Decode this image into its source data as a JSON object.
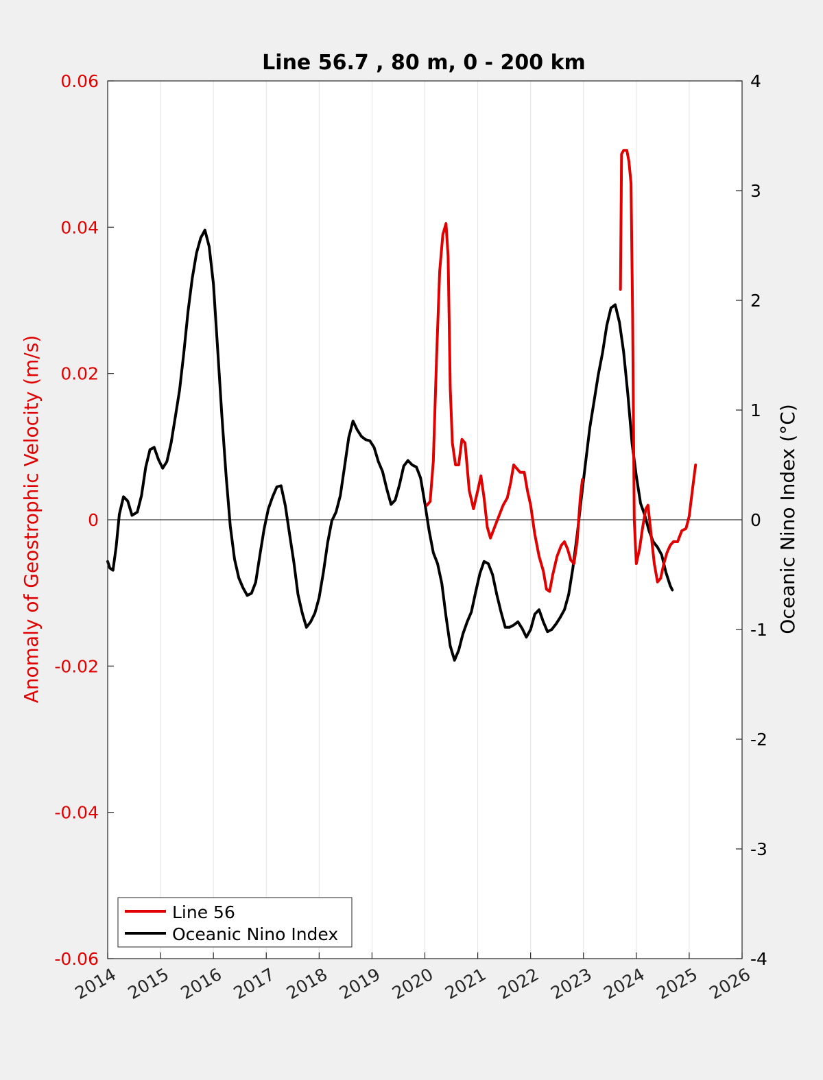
{
  "chart_data": {
    "type": "line",
    "title": "Line 56.7 , 80 m, 0 - 200 km",
    "xlabel": "",
    "ylabel_left": "Anomaly of Geostrophic Velocity (m/s)",
    "ylabel_right": "Oceanic Nino Index (°C)",
    "xlim": [
      2014,
      2026
    ],
    "ylim_left": [
      -0.06,
      0.06
    ],
    "ylim_right": [
      -4,
      4
    ],
    "x_ticks": [
      "2014",
      "2015",
      "2016",
      "2017",
      "2018",
      "2019",
      "2020",
      "2021",
      "2022",
      "2023",
      "2024",
      "2025",
      "2026"
    ],
    "y_ticks_left": [
      "-0.06",
      "-0.04",
      "-0.02",
      "0",
      "0.02",
      "0.04",
      "0.06"
    ],
    "y_ticks_right": [
      "-4",
      "-3",
      "-2",
      "-1",
      "0",
      "1",
      "2",
      "3",
      "4"
    ],
    "grid": "vertical",
    "legend_position": "bottom-left",
    "colors": {
      "left_axis": "#e00000",
      "line56": "#e00000",
      "oni": "#000000",
      "background": "#f0f0f0",
      "plot_area": "#ffffff"
    },
    "series": [
      {
        "name": "Line 56",
        "axis": "left",
        "segments": [
          [
            [
              2020.04,
              0.002
            ],
            [
              2020.1,
              0.0025
            ],
            [
              2020.16,
              0.008
            ],
            [
              2020.22,
              0.022
            ],
            [
              2020.28,
              0.034
            ],
            [
              2020.34,
              0.039
            ],
            [
              2020.4,
              0.0405
            ],
            [
              2020.44,
              0.036
            ],
            [
              2020.48,
              0.018
            ],
            [
              2020.52,
              0.0105
            ],
            [
              2020.58,
              0.0075
            ],
            [
              2020.64,
              0.0075
            ],
            [
              2020.7,
              0.011
            ],
            [
              2020.76,
              0.0105
            ],
            [
              2020.84,
              0.004
            ],
            [
              2020.92,
              0.0015
            ],
            [
              2021.0,
              0.004
            ],
            [
              2021.06,
              0.006
            ],
            [
              2021.12,
              0.003
            ],
            [
              2021.18,
              -0.001
            ],
            [
              2021.24,
              -0.0025
            ],
            [
              2021.32,
              -0.001
            ],
            [
              2021.4,
              0.0005
            ],
            [
              2021.48,
              0.002
            ],
            [
              2021.56,
              0.003
            ],
            [
              2021.62,
              0.005
            ],
            [
              2021.68,
              0.0075
            ],
            [
              2021.74,
              0.007
            ],
            [
              2021.8,
              0.0065
            ],
            [
              2021.88,
              0.0065
            ],
            [
              2021.94,
              0.004
            ],
            [
              2022.0,
              0.002
            ],
            [
              2022.08,
              -0.002
            ],
            [
              2022.16,
              -0.005
            ],
            [
              2022.24,
              -0.007
            ],
            [
              2022.3,
              -0.0095
            ],
            [
              2022.36,
              -0.0098
            ],
            [
              2022.42,
              -0.0075
            ],
            [
              2022.5,
              -0.005
            ],
            [
              2022.58,
              -0.0035
            ],
            [
              2022.64,
              -0.003
            ],
            [
              2022.7,
              -0.004
            ],
            [
              2022.76,
              -0.0055
            ],
            [
              2022.82,
              -0.006
            ],
            [
              2022.88,
              -0.003
            ],
            [
              2022.94,
              0.003
            ],
            [
              2022.98,
              0.0055
            ]
          ],
          [
            [
              2023.7,
              0.0315
            ],
            [
              2023.72,
              0.05
            ],
            [
              2023.76,
              0.0505
            ],
            [
              2023.82,
              0.0505
            ],
            [
              2023.86,
              0.049
            ],
            [
              2023.9,
              0.046
            ],
            [
              2023.93,
              0.028
            ],
            [
              2023.96,
              0.0
            ],
            [
              2024.0,
              -0.006
            ],
            [
              2024.06,
              -0.004
            ],
            [
              2024.12,
              -0.001
            ],
            [
              2024.18,
              0.0015
            ],
            [
              2024.22,
              0.002
            ],
            [
              2024.28,
              -0.002
            ],
            [
              2024.34,
              -0.006
            ],
            [
              2024.4,
              -0.0085
            ],
            [
              2024.46,
              -0.008
            ],
            [
              2024.52,
              -0.006
            ],
            [
              2024.58,
              -0.0045
            ],
            [
              2024.64,
              -0.0035
            ],
            [
              2024.7,
              -0.003
            ],
            [
              2024.78,
              -0.003
            ],
            [
              2024.86,
              -0.0015
            ],
            [
              2024.94,
              -0.0012
            ],
            [
              2025.0,
              0.0005
            ],
            [
              2025.06,
              0.004
            ],
            [
              2025.12,
              0.0075
            ]
          ]
        ]
      },
      {
        "name": "Oceanic Nino Index",
        "axis": "right",
        "segments": [
          [
            [
              2014.0,
              -0.38
            ],
            [
              2014.04,
              -0.44
            ],
            [
              2014.1,
              -0.46
            ],
            [
              2014.16,
              -0.25
            ],
            [
              2014.22,
              0.05
            ],
            [
              2014.3,
              0.21
            ],
            [
              2014.38,
              0.17
            ],
            [
              2014.46,
              0.04
            ],
            [
              2014.56,
              0.07
            ],
            [
              2014.64,
              0.22
            ],
            [
              2014.72,
              0.48
            ],
            [
              2014.8,
              0.64
            ],
            [
              2014.88,
              0.66
            ],
            [
              2014.96,
              0.55
            ],
            [
              2015.04,
              0.47
            ],
            [
              2015.12,
              0.53
            ],
            [
              2015.2,
              0.7
            ],
            [
              2015.28,
              0.94
            ],
            [
              2015.36,
              1.18
            ],
            [
              2015.44,
              1.52
            ],
            [
              2015.52,
              1.9
            ],
            [
              2015.6,
              2.2
            ],
            [
              2015.68,
              2.43
            ],
            [
              2015.76,
              2.57
            ],
            [
              2015.84,
              2.64
            ],
            [
              2015.92,
              2.49
            ],
            [
              2016.0,
              2.15
            ],
            [
              2016.08,
              1.56
            ],
            [
              2016.16,
              0.95
            ],
            [
              2016.24,
              0.4
            ],
            [
              2016.32,
              -0.06
            ],
            [
              2016.4,
              -0.36
            ],
            [
              2016.48,
              -0.53
            ],
            [
              2016.56,
              -0.62
            ],
            [
              2016.64,
              -0.69
            ],
            [
              2016.72,
              -0.67
            ],
            [
              2016.8,
              -0.57
            ],
            [
              2016.88,
              -0.32
            ],
            [
              2016.96,
              -0.08
            ],
            [
              2017.04,
              0.1
            ],
            [
              2017.12,
              0.21
            ],
            [
              2017.2,
              0.3
            ],
            [
              2017.28,
              0.31
            ],
            [
              2017.36,
              0.13
            ],
            [
              2017.44,
              -0.13
            ],
            [
              2017.52,
              -0.38
            ],
            [
              2017.6,
              -0.68
            ],
            [
              2017.68,
              -0.85
            ],
            [
              2017.76,
              -0.98
            ],
            [
              2017.84,
              -0.93
            ],
            [
              2017.92,
              -0.85
            ],
            [
              2018.0,
              -0.71
            ],
            [
              2018.08,
              -0.48
            ],
            [
              2018.16,
              -0.21
            ],
            [
              2018.24,
              -0.01
            ],
            [
              2018.32,
              0.07
            ],
            [
              2018.4,
              0.22
            ],
            [
              2018.48,
              0.48
            ],
            [
              2018.56,
              0.75
            ],
            [
              2018.64,
              0.9
            ],
            [
              2018.72,
              0.82
            ],
            [
              2018.8,
              0.76
            ],
            [
              2018.88,
              0.73
            ],
            [
              2018.96,
              0.72
            ],
            [
              2019.04,
              0.66
            ],
            [
              2019.12,
              0.53
            ],
            [
              2019.2,
              0.44
            ],
            [
              2019.28,
              0.28
            ],
            [
              2019.36,
              0.14
            ],
            [
              2019.44,
              0.18
            ],
            [
              2019.52,
              0.32
            ],
            [
              2019.6,
              0.49
            ],
            [
              2019.68,
              0.54
            ],
            [
              2019.76,
              0.5
            ],
            [
              2019.84,
              0.48
            ],
            [
              2019.92,
              0.38
            ],
            [
              2020.0,
              0.15
            ],
            [
              2020.08,
              -0.1
            ],
            [
              2020.16,
              -0.3
            ],
            [
              2020.24,
              -0.4
            ],
            [
              2020.32,
              -0.58
            ],
            [
              2020.4,
              -0.88
            ],
            [
              2020.48,
              -1.15
            ],
            [
              2020.56,
              -1.28
            ],
            [
              2020.64,
              -1.19
            ],
            [
              2020.72,
              -1.04
            ],
            [
              2020.8,
              -0.93
            ],
            [
              2020.88,
              -0.84
            ],
            [
              2020.96,
              -0.66
            ],
            [
              2021.04,
              -0.49
            ],
            [
              2021.12,
              -0.38
            ],
            [
              2021.2,
              -0.4
            ],
            [
              2021.28,
              -0.5
            ],
            [
              2021.36,
              -0.68
            ],
            [
              2021.44,
              -0.84
            ],
            [
              2021.52,
              -0.98
            ],
            [
              2021.6,
              -0.98
            ],
            [
              2021.68,
              -0.96
            ],
            [
              2021.76,
              -0.93
            ],
            [
              2021.84,
              -0.99
            ],
            [
              2021.92,
              -1.07
            ],
            [
              2022.0,
              -1.0
            ],
            [
              2022.08,
              -0.86
            ],
            [
              2022.16,
              -0.82
            ],
            [
              2022.24,
              -0.93
            ],
            [
              2022.32,
              -1.02
            ],
            [
              2022.4,
              -1.0
            ],
            [
              2022.48,
              -0.95
            ],
            [
              2022.56,
              -0.89
            ],
            [
              2022.64,
              -0.82
            ],
            [
              2022.72,
              -0.68
            ],
            [
              2022.8,
              -0.44
            ],
            [
              2022.88,
              -0.14
            ],
            [
              2022.96,
              0.2
            ],
            [
              2023.04,
              0.52
            ],
            [
              2023.12,
              0.84
            ],
            [
              2023.2,
              1.08
            ],
            [
              2023.28,
              1.32
            ],
            [
              2023.36,
              1.52
            ],
            [
              2023.44,
              1.77
            ],
            [
              2023.52,
              1.93
            ],
            [
              2023.6,
              1.96
            ],
            [
              2023.68,
              1.8
            ],
            [
              2023.76,
              1.53
            ],
            [
              2023.84,
              1.14
            ],
            [
              2023.92,
              0.69
            ],
            [
              2024.0,
              0.4
            ],
            [
              2024.08,
              0.15
            ],
            [
              2024.16,
              0.04
            ],
            [
              2024.24,
              -0.1
            ],
            [
              2024.32,
              -0.2
            ],
            [
              2024.4,
              -0.25
            ],
            [
              2024.48,
              -0.32
            ],
            [
              2024.56,
              -0.48
            ],
            [
              2024.64,
              -0.6
            ],
            [
              2024.68,
              -0.64
            ]
          ]
        ]
      }
    ]
  }
}
